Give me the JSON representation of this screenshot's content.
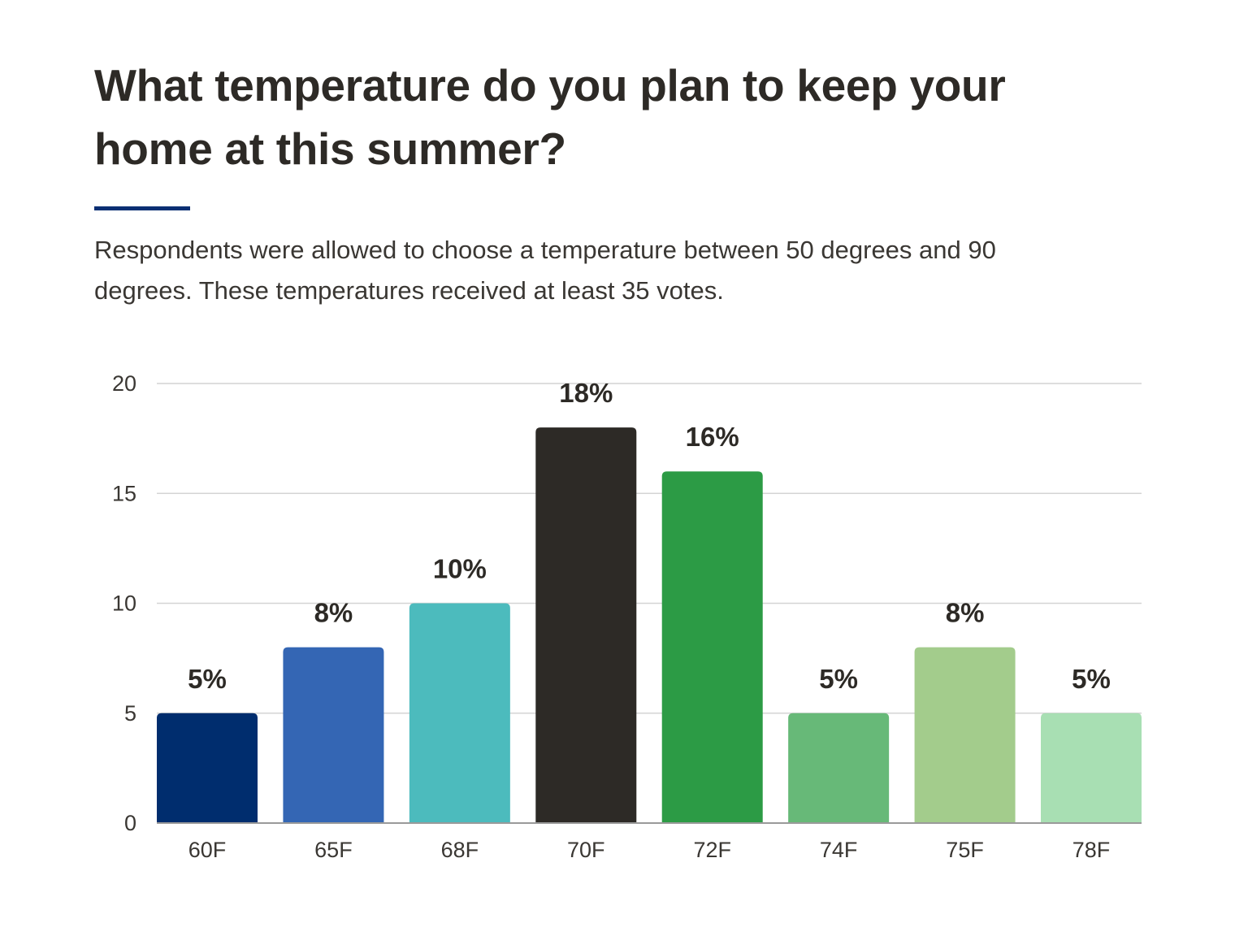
{
  "title": "What temperature do you plan to keep your home at this summer?",
  "subtitle": "Respondents were allowed to choose a temperature between 50 degrees and 90 degrees. These temperatures received at least 35 votes.",
  "accent_color": "#0a2f73",
  "chart_data": {
    "type": "bar",
    "categories": [
      "60F",
      "65F",
      "68F",
      "70F",
      "72F",
      "74F",
      "75F",
      "78F"
    ],
    "values": [
      5,
      8,
      10,
      18,
      16,
      5,
      8,
      5
    ],
    "data_labels": [
      "5%",
      "8%",
      "10%",
      "18%",
      "16%",
      "5%",
      "8%",
      "5%"
    ],
    "colors": [
      "#002d6e",
      "#3466b4",
      "#4cbbbd",
      "#2d2a26",
      "#2c9b45",
      "#67b978",
      "#a3cc8c",
      "#a8dfb3"
    ],
    "ylim": [
      0,
      20
    ],
    "yticks": [
      0,
      5,
      10,
      15,
      20
    ],
    "grid": true,
    "gridline_color": "#d4d4d4",
    "xlabel": "",
    "ylabel": ""
  }
}
